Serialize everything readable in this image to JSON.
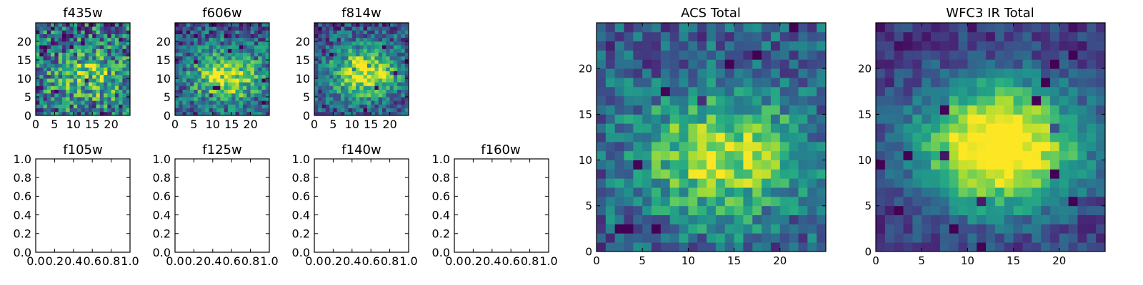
{
  "figure": {
    "panel_titles": {
      "f435w": "f435w",
      "f606w": "f606w",
      "f814w": "f814w",
      "f105w": "f105w",
      "f125w": "f125w",
      "f140w": "f140w",
      "f160w": "f160w",
      "acs_total": "ACS Total",
      "wfc3_total": "WFC3 IR Total"
    }
  },
  "chart_data": [
    {
      "id": "f435w",
      "type": "heatmap",
      "title": "f435w",
      "grid_size": [
        25,
        25
      ],
      "xlim": [
        0,
        25
      ],
      "ylim": [
        0,
        25
      ],
      "xticks": [
        0,
        5,
        10,
        15,
        20
      ],
      "yticks": [
        0,
        5,
        10,
        15,
        20
      ],
      "colormap": "viridis",
      "peak": [
        14,
        10
      ],
      "signal": 0.35,
      "noise": 0.75
    },
    {
      "id": "f606w",
      "type": "heatmap",
      "title": "f606w",
      "grid_size": [
        25,
        25
      ],
      "xlim": [
        0,
        25
      ],
      "ylim": [
        0,
        25
      ],
      "xticks": [
        0,
        5,
        10,
        15,
        20
      ],
      "yticks": [
        0,
        5,
        10,
        15,
        20
      ],
      "colormap": "viridis",
      "peak": [
        13,
        10
      ],
      "signal": 0.6,
      "noise": 0.55
    },
    {
      "id": "f814w",
      "type": "heatmap",
      "title": "f814w",
      "grid_size": [
        25,
        25
      ],
      "xlim": [
        0,
        25
      ],
      "ylim": [
        0,
        25
      ],
      "xticks": [
        0,
        5,
        10,
        15,
        20
      ],
      "yticks": [
        0,
        5,
        10,
        15,
        20
      ],
      "colormap": "viridis",
      "peak": [
        13,
        11
      ],
      "signal": 0.7,
      "noise": 0.5
    },
    {
      "id": "f105w",
      "type": "scatter",
      "title": "f105w",
      "empty": true,
      "xlim": [
        0,
        1
      ],
      "ylim": [
        0,
        1
      ],
      "xticks": [
        "0.0",
        "0.2",
        "0.4",
        "0.6",
        "0.8",
        "1.0"
      ],
      "yticks": [
        "0.0",
        "0.2",
        "0.4",
        "0.6",
        "0.8",
        "1.0"
      ]
    },
    {
      "id": "f125w",
      "type": "scatter",
      "title": "f125w",
      "empty": true,
      "xlim": [
        0,
        1
      ],
      "ylim": [
        0,
        1
      ],
      "xticks": [
        "0.0",
        "0.2",
        "0.4",
        "0.6",
        "0.8",
        "1.0"
      ],
      "yticks": [
        "0.0",
        "0.2",
        "0.4",
        "0.6",
        "0.8",
        "1.0"
      ]
    },
    {
      "id": "f140w",
      "type": "scatter",
      "title": "f140w",
      "empty": true,
      "xlim": [
        0,
        1
      ],
      "ylim": [
        0,
        1
      ],
      "xticks": [
        "0.0",
        "0.2",
        "0.4",
        "0.6",
        "0.8",
        "1.0"
      ],
      "yticks": [
        "0.0",
        "0.2",
        "0.4",
        "0.6",
        "0.8",
        "1.0"
      ]
    },
    {
      "id": "f160w",
      "type": "scatter",
      "title": "f160w",
      "empty": true,
      "xlim": [
        0,
        1
      ],
      "ylim": [
        0,
        1
      ],
      "xticks": [
        "0.0",
        "0.2",
        "0.4",
        "0.6",
        "0.8",
        "1.0"
      ],
      "yticks": [
        "0.0",
        "0.2",
        "0.4",
        "0.6",
        "0.8",
        "1.0"
      ]
    },
    {
      "id": "acs_total",
      "type": "heatmap",
      "title": "ACS Total",
      "grid_size": [
        25,
        25
      ],
      "xlim": [
        0,
        25
      ],
      "ylim": [
        0,
        25
      ],
      "xticks": [
        0,
        5,
        10,
        15,
        20
      ],
      "yticks": [
        0,
        5,
        10,
        15,
        20
      ],
      "colormap": "viridis",
      "peak": [
        13,
        10
      ],
      "signal": 0.6,
      "noise": 0.45
    },
    {
      "id": "wfc3_total",
      "type": "heatmap",
      "title": "WFC3 IR Total",
      "grid_size": [
        25,
        25
      ],
      "xlim": [
        0,
        25
      ],
      "ylim": [
        0,
        25
      ],
      "xticks": [
        0,
        5,
        10,
        15,
        20
      ],
      "yticks": [
        0,
        5,
        10,
        15,
        20
      ],
      "colormap": "viridis",
      "peak": [
        13,
        11
      ],
      "signal": 1.0,
      "noise": 0.28
    }
  ]
}
